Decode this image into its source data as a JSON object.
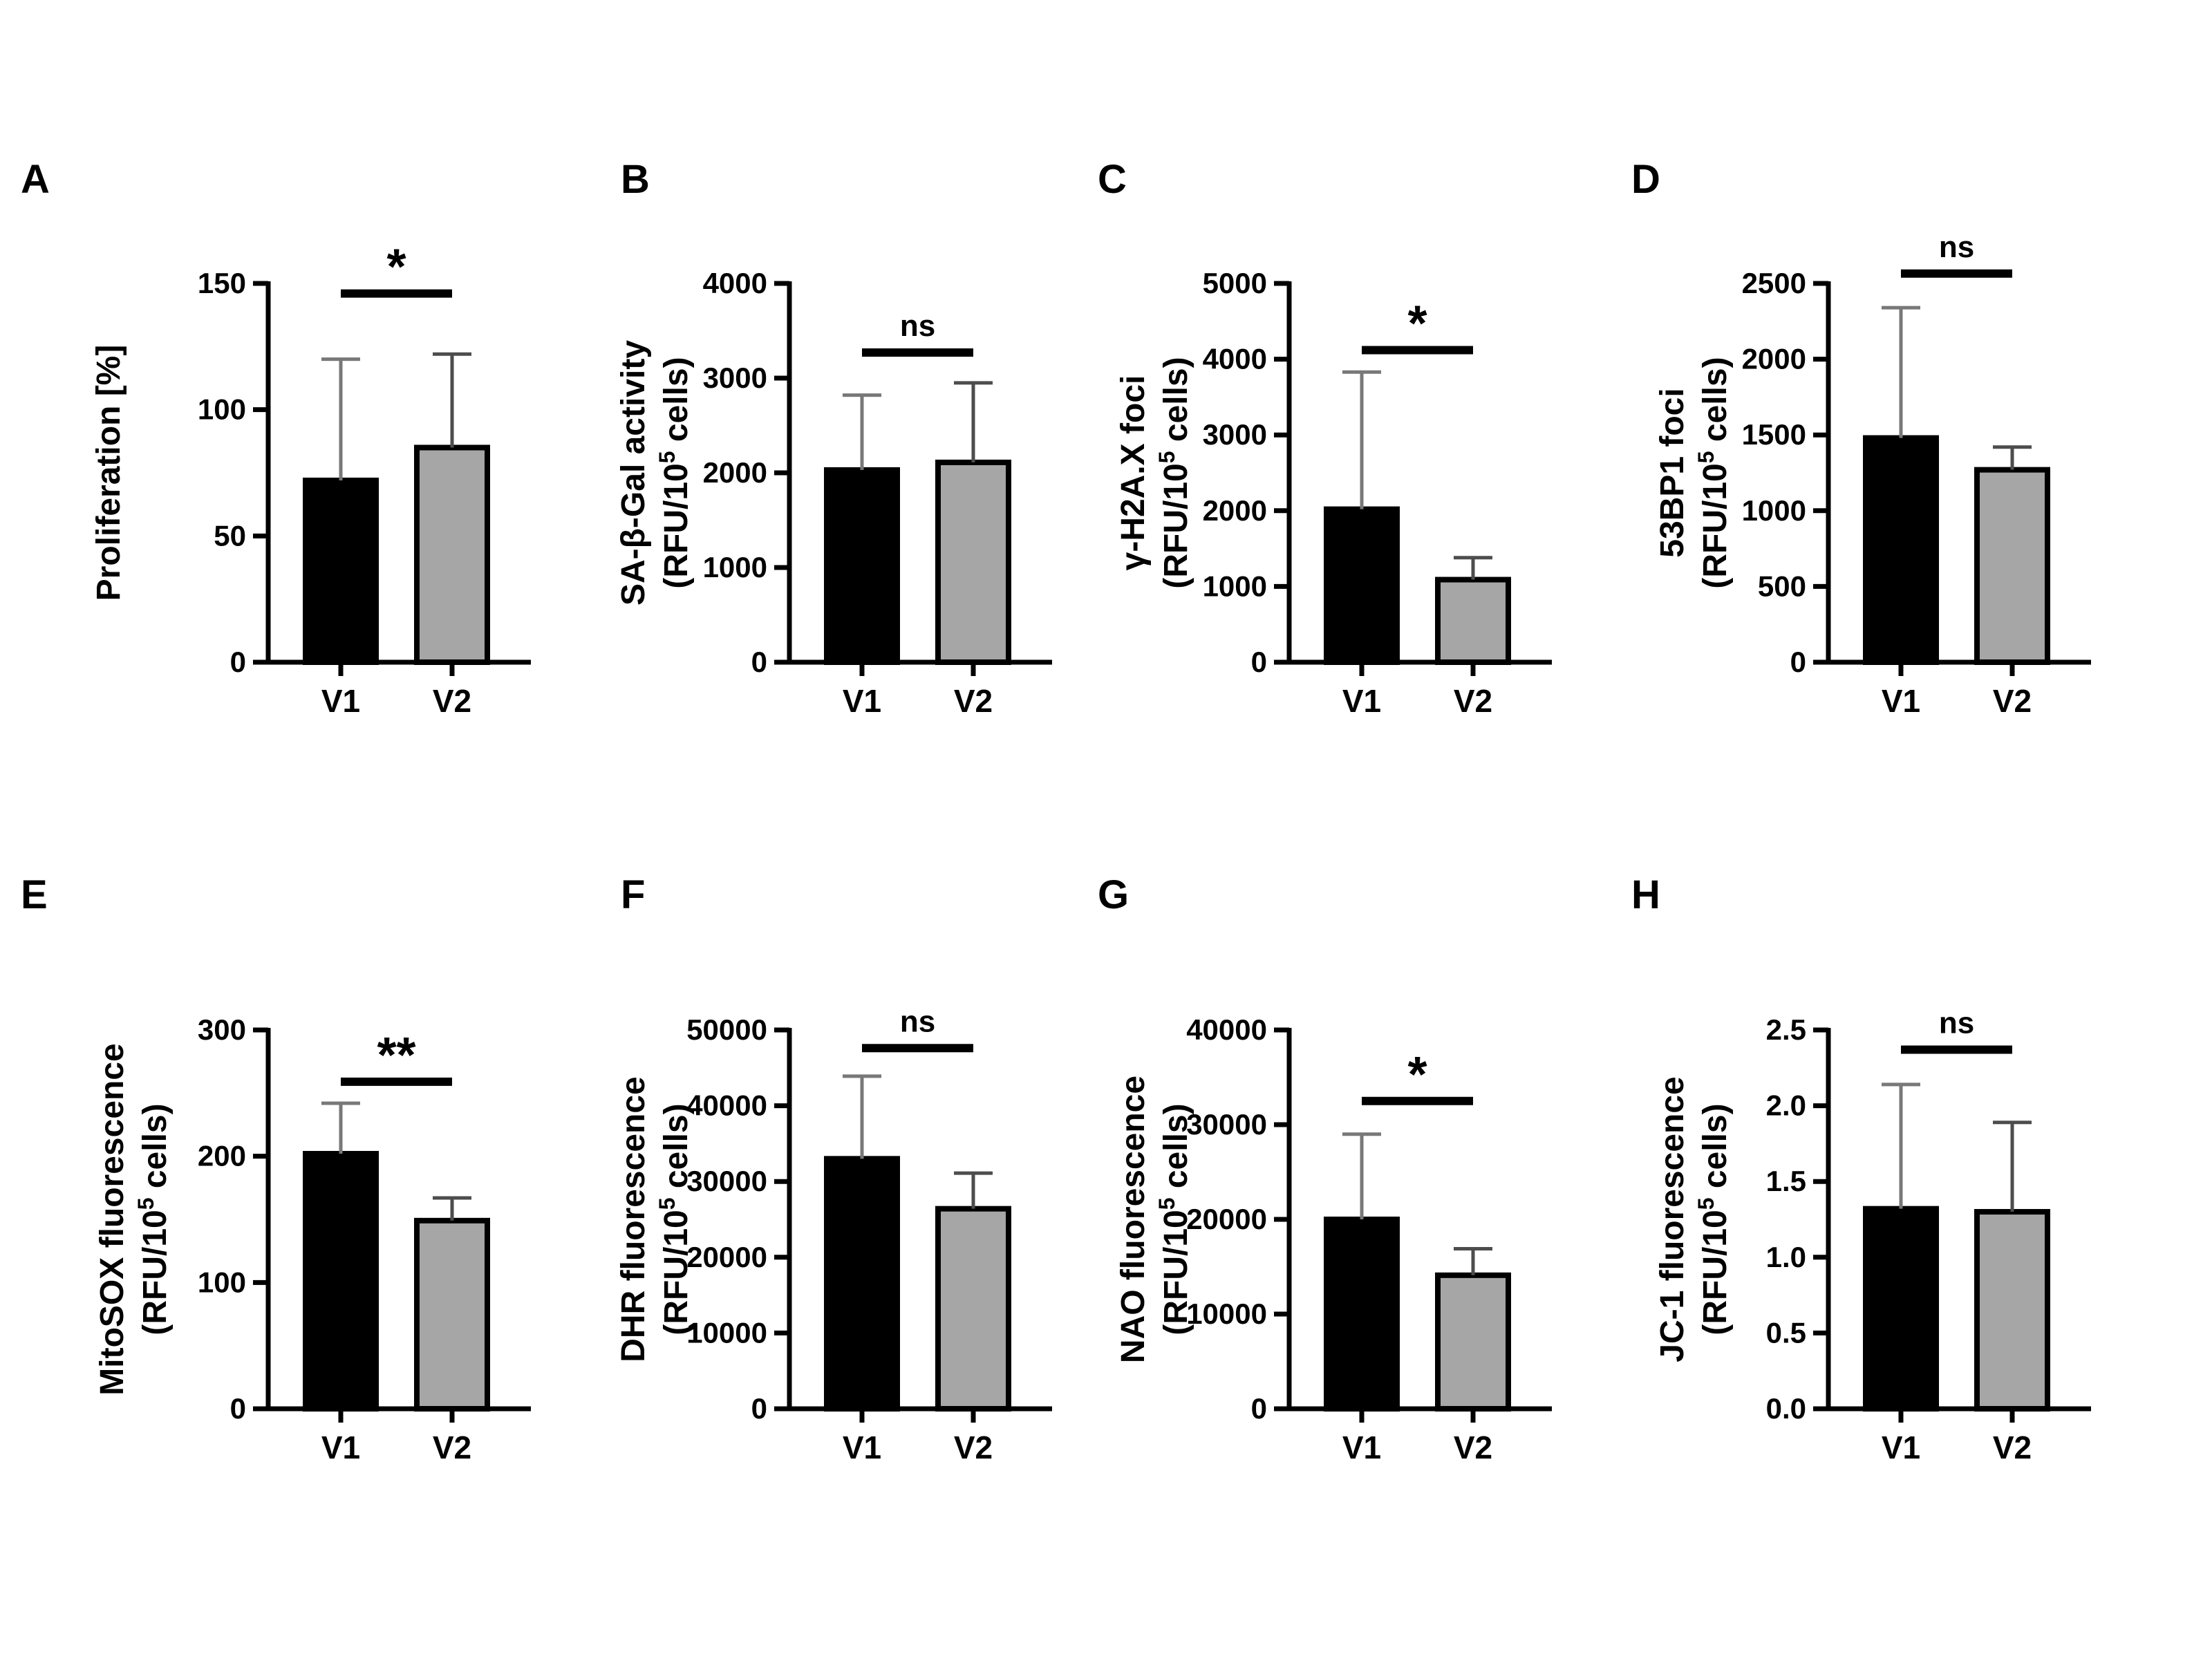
{
  "figure": {
    "background": "#ffffff",
    "series_names": [
      "V1",
      "V2"
    ],
    "colors": {
      "v1_bar_fill": "#000000",
      "v2_bar_fill": "#a6a6a6",
      "bar_border": "#000000",
      "v1_error_bar": "#787878",
      "v2_error_bar": "#4d4d4d",
      "significance": "#000000",
      "axis": "#000000",
      "text": "#000000"
    }
  },
  "chart_data": [
    {
      "panel": "A",
      "type": "bar",
      "categories": [
        "V1",
        "V2"
      ],
      "values": [
        72,
        85
      ],
      "error_upper": [
        120,
        122
      ],
      "ylabel_line1": "Proliferation [%]",
      "ylabel_line2_pre": null,
      "ylabel_line2_sup": null,
      "ylabel_line2_post": null,
      "ylim": [
        0,
        150
      ],
      "yticks": [
        0,
        50,
        100,
        150
      ],
      "ytick_labels": [
        "0",
        "50",
        "100",
        "150"
      ],
      "significance": "*",
      "sig_line_y": 146,
      "grid": false,
      "legend": "none"
    },
    {
      "panel": "B",
      "type": "bar",
      "categories": [
        "V1",
        "V2"
      ],
      "values": [
        2030,
        2110
      ],
      "error_upper": [
        2820,
        2950
      ],
      "ylabel_line1": "SA-β-Gal activity",
      "ylabel_line2_pre": "(RFU/10",
      "ylabel_line2_sup": "5",
      "ylabel_line2_post": " cells)",
      "ylim": [
        0,
        4000
      ],
      "yticks": [
        0,
        1000,
        2000,
        3000,
        4000
      ],
      "ytick_labels": [
        "0",
        "1000",
        "2000",
        "3000",
        "4000"
      ],
      "significance": "ns",
      "sig_line_y": 3270,
      "grid": false,
      "legend": "none"
    },
    {
      "panel": "C",
      "type": "bar",
      "categories": [
        "V1",
        "V2"
      ],
      "values": [
        2020,
        1090
      ],
      "error_upper": [
        3830,
        1380
      ],
      "ylabel_line1": "γ-H2A.X foci",
      "ylabel_line2_pre": "(RFU/10",
      "ylabel_line2_sup": "5",
      "ylabel_line2_post": " cells)",
      "ylim": [
        0,
        5000
      ],
      "yticks": [
        0,
        1000,
        2000,
        3000,
        4000,
        5000
      ],
      "ytick_labels": [
        "0",
        "1000",
        "2000",
        "3000",
        "4000",
        "5000"
      ],
      "significance": "*",
      "sig_line_y": 4120,
      "grid": false,
      "legend": "none"
    },
    {
      "panel": "D",
      "type": "bar",
      "categories": [
        "V1",
        "V2"
      ],
      "values": [
        1480,
        1270
      ],
      "error_upper": [
        2340,
        1420
      ],
      "ylabel_line1": "53BP1 foci",
      "ylabel_line2_pre": "(RFU/10",
      "ylabel_line2_sup": "5",
      "ylabel_line2_post": " cells)",
      "ylim": [
        0,
        2500
      ],
      "yticks": [
        0,
        500,
        1000,
        1500,
        2000,
        2500
      ],
      "ytick_labels": [
        "0",
        "500",
        "1000",
        "1500",
        "2000",
        "2500"
      ],
      "significance": "ns",
      "sig_line_y": 2565,
      "grid": false,
      "legend": "none"
    },
    {
      "panel": "E",
      "type": "bar",
      "categories": [
        "V1",
        "V2"
      ],
      "values": [
        202,
        149
      ],
      "error_upper": [
        242,
        167
      ],
      "ylabel_line1": "MitoSOX fluorescence",
      "ylabel_line2_pre": "(RFU/10",
      "ylabel_line2_sup": "5",
      "ylabel_line2_post": " cells)",
      "ylim": [
        0,
        300
      ],
      "yticks": [
        0,
        100,
        200,
        300
      ],
      "ytick_labels": [
        "0",
        "100",
        "200",
        "300"
      ],
      "significance": "**",
      "sig_line_y": 259,
      "grid": false,
      "legend": "none"
    },
    {
      "panel": "F",
      "type": "bar",
      "categories": [
        "V1",
        "V2"
      ],
      "values": [
        33000,
        26400
      ],
      "error_upper": [
        43900,
        31100
      ],
      "ylabel_line1": "DHR fluorescence",
      "ylabel_line2_pre": "(RFU/10",
      "ylabel_line2_sup": "5",
      "ylabel_line2_post": " cells)",
      "ylim": [
        0,
        50000
      ],
      "yticks": [
        0,
        10000,
        20000,
        30000,
        40000,
        50000
      ],
      "ytick_labels": [
        "0",
        "10000",
        "20000",
        "30000",
        "40000",
        "50000"
      ],
      "significance": "ns",
      "sig_line_y": 47600,
      "grid": false,
      "legend": "none"
    },
    {
      "panel": "G",
      "type": "bar",
      "categories": [
        "V1",
        "V2"
      ],
      "values": [
        20000,
        14100
      ],
      "error_upper": [
        29000,
        16900
      ],
      "ylabel_line1": "NAO fluorescence",
      "ylabel_line2_pre": "(RFU/10",
      "ylabel_line2_sup": "5",
      "ylabel_line2_post": " cells)",
      "ylim": [
        0,
        40000
      ],
      "yticks": [
        0,
        10000,
        20000,
        30000,
        40000
      ],
      "ytick_labels": [
        "0",
        "10000",
        "20000",
        "30000",
        "40000"
      ],
      "significance": "*",
      "sig_line_y": 32500,
      "grid": false,
      "legend": "none"
    },
    {
      "panel": "H",
      "type": "bar",
      "categories": [
        "V1",
        "V2"
      ],
      "values": [
        1.32,
        1.3
      ],
      "error_upper": [
        2.14,
        1.89
      ],
      "ylabel_line1": "JC-1 fluorescence",
      "ylabel_line2_pre": "(RFU/10",
      "ylabel_line2_sup": "5",
      "ylabel_line2_post": " cells)",
      "ylim": [
        0,
        2.5
      ],
      "yticks": [
        0,
        0.5,
        1.0,
        1.5,
        2.0,
        2.5
      ],
      "ytick_labels": [
        "0.0",
        "0.5",
        "1.0",
        "1.5",
        "2.0",
        "2.5"
      ],
      "significance": "ns",
      "sig_line_y": 2.37,
      "grid": false,
      "legend": "none"
    }
  ]
}
